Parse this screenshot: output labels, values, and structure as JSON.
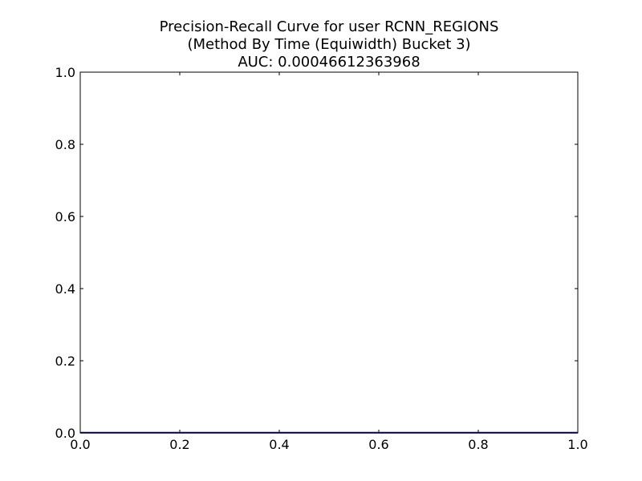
{
  "chart_data": {
    "type": "line",
    "title_lines": [
      "Precision-Recall Curve for user RCNN_REGIONS",
      "(Method By Time (Equiwidth) Bucket 3)",
      "AUC: 0.00046612363968"
    ],
    "xlabel": "",
    "ylabel": "",
    "xlim": [
      0.0,
      1.0
    ],
    "ylim": [
      0.0,
      1.0
    ],
    "xticks": [
      0.0,
      0.2,
      0.4,
      0.6,
      0.8,
      1.0
    ],
    "yticks": [
      0.0,
      0.2,
      0.4,
      0.6,
      0.8,
      1.0
    ],
    "xtick_labels": [
      "0.0",
      "0.2",
      "0.4",
      "0.6",
      "0.8",
      "1.0"
    ],
    "ytick_labels": [
      "0.0",
      "0.2",
      "0.4",
      "0.6",
      "0.8",
      "1.0"
    ],
    "grid": false,
    "series": [
      {
        "color": "#00008b",
        "x": [
          0.0,
          1.0
        ],
        "y": [
          0.0005,
          0.0005
        ]
      }
    ]
  }
}
